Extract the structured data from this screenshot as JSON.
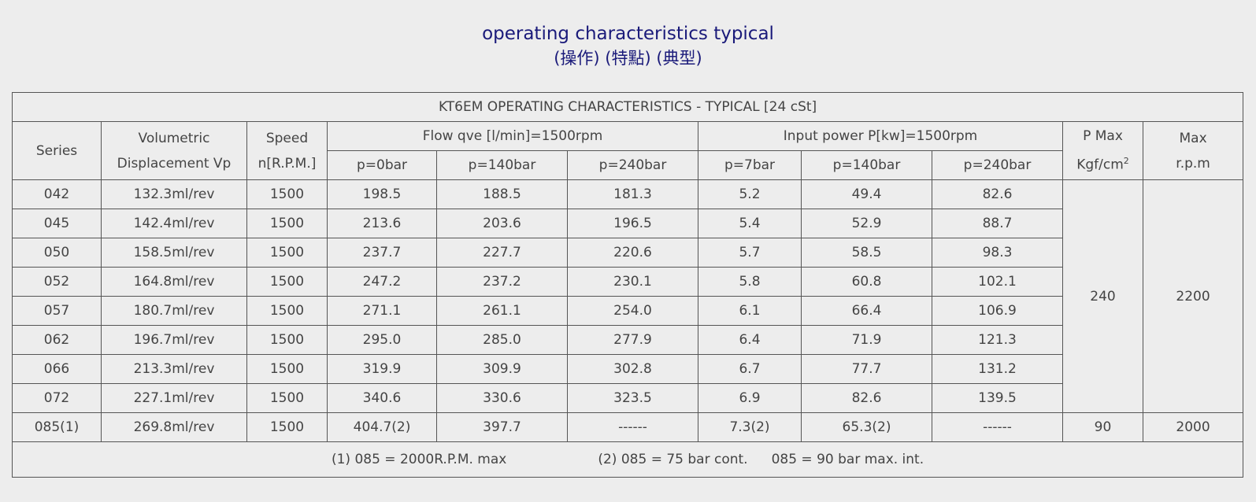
{
  "title": {
    "main": "operating characteristics typical",
    "sub": "(操作) (特點) (典型)"
  },
  "table": {
    "caption": "KT6EM OPERATING CHARACTERISTICS - TYPICAL [24 cSt]",
    "headers": {
      "series": "Series",
      "displacement_line1": "Volumetric",
      "displacement_line2": "Displacement Vp",
      "speed_line1": "Speed",
      "speed_line2": "n[R.P.M.]",
      "flow_group": "Flow qve [l/min]=1500rpm",
      "power_group": "Input power P[kw]=1500rpm",
      "pmax_line1": "P Max",
      "pmax_line2": "Kgf/cm",
      "pmax_sup": "2",
      "maxrpm_line1": "Max",
      "maxrpm_line2": "r.p.m",
      "flow_sub": [
        "p=0bar",
        "p=140bar",
        "p=240bar"
      ],
      "power_sub": [
        "p=7bar",
        "p=140bar",
        "p=240bar"
      ]
    },
    "rows": [
      {
        "series": "042",
        "disp": "132.3ml/rev",
        "speed": "1500",
        "f0": "198.5",
        "f140": "188.5",
        "f240": "181.3",
        "p7": "5.2",
        "p140": "49.4",
        "p240": "82.6"
      },
      {
        "series": "045",
        "disp": "142.4ml/rev",
        "speed": "1500",
        "f0": "213.6",
        "f140": "203.6",
        "f240": "196.5",
        "p7": "5.4",
        "p140": "52.9",
        "p240": "88.7"
      },
      {
        "series": "050",
        "disp": "158.5ml/rev",
        "speed": "1500",
        "f0": "237.7",
        "f140": "227.7",
        "f240": "220.6",
        "p7": "5.7",
        "p140": "58.5",
        "p240": "98.3"
      },
      {
        "series": "052",
        "disp": "164.8ml/rev",
        "speed": "1500",
        "f0": "247.2",
        "f140": "237.2",
        "f240": "230.1",
        "p7": "5.8",
        "p140": "60.8",
        "p240": "102.1"
      },
      {
        "series": "057",
        "disp": "180.7ml/rev",
        "speed": "1500",
        "f0": "271.1",
        "f140": "261.1",
        "f240": "254.0",
        "p7": "6.1",
        "p140": "66.4",
        "p240": "106.9"
      },
      {
        "series": "062",
        "disp": "196.7ml/rev",
        "speed": "1500",
        "f0": "295.0",
        "f140": "285.0",
        "f240": "277.9",
        "p7": "6.4",
        "p140": "71.9",
        "p240": "121.3"
      },
      {
        "series": "066",
        "disp": "213.3ml/rev",
        "speed": "1500",
        "f0": "319.9",
        "f140": "309.9",
        "f240": "302.8",
        "p7": "6.7",
        "p140": "77.7",
        "p240": "131.2"
      },
      {
        "series": "072",
        "disp": "227.1ml/rev",
        "speed": "1500",
        "f0": "340.6",
        "f140": "330.6",
        "f240": "323.5",
        "p7": "6.9",
        "p140": "82.6",
        "p240": "139.5"
      }
    ],
    "group_pmax": "240",
    "group_maxrpm": "2200",
    "last_row": {
      "series": "085(1)",
      "disp": "269.8ml/rev",
      "speed": "1500",
      "f0": "404.7(2)",
      "f140": "397.7",
      "f240": "------",
      "p7": "7.3(2)",
      "p140": "65.3(2)",
      "p240": "------",
      "pmax": "90",
      "maxrpm": "2000"
    },
    "footnotes": {
      "note1": "(1) 085 = 2000R.P.M. max",
      "note2": "(2) 085 = 75 bar cont.",
      "note3": "085 = 90 bar max. int."
    }
  }
}
